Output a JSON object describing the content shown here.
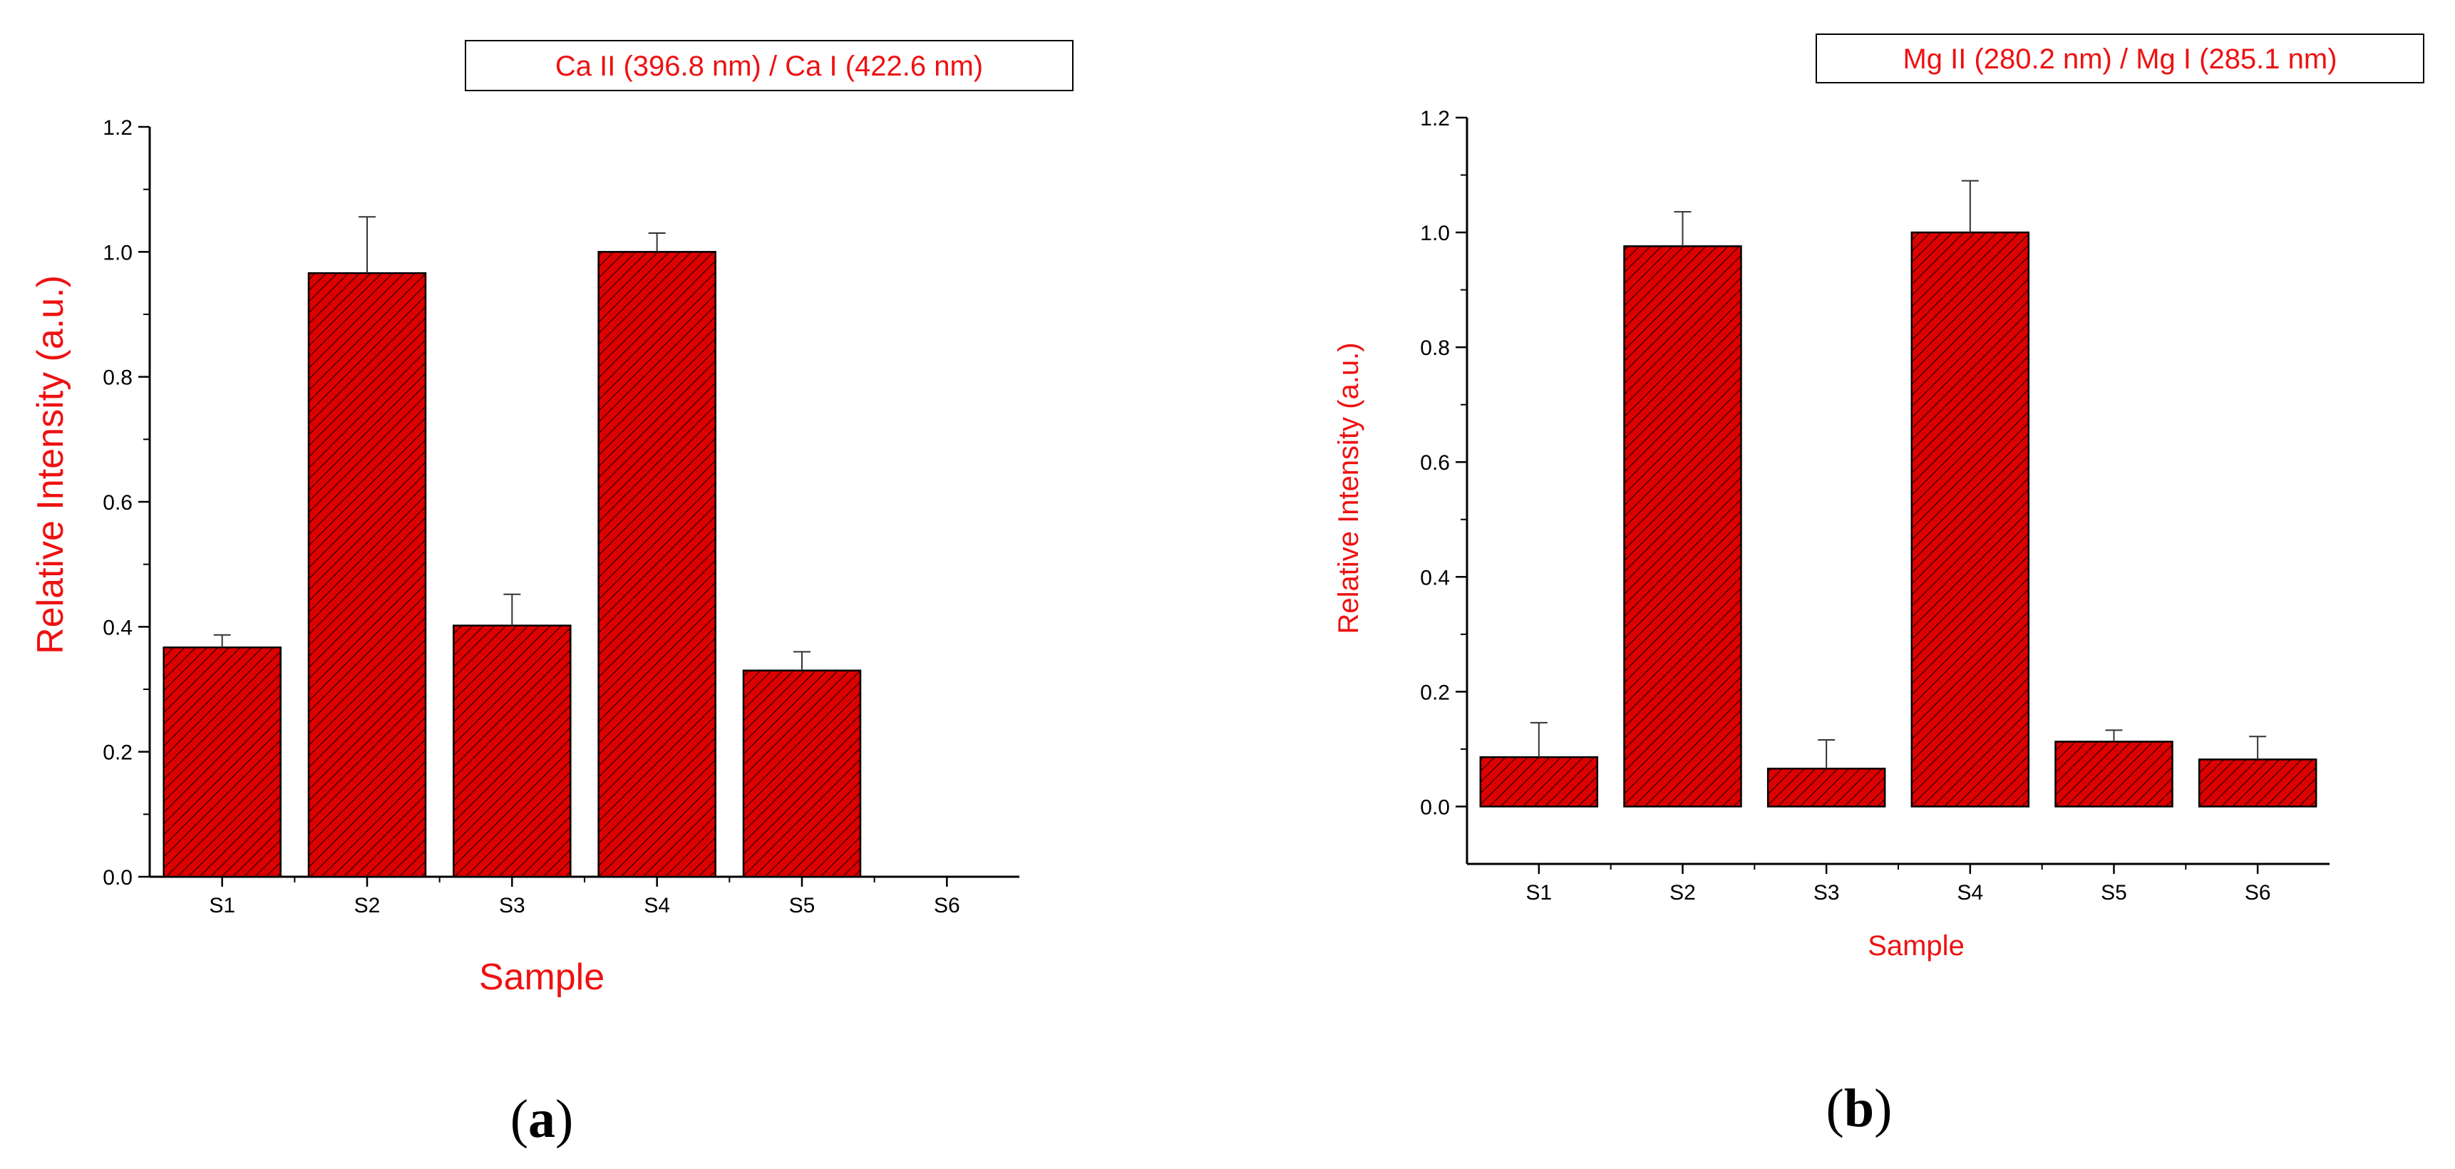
{
  "chart_data": [
    {
      "type": "bar",
      "panel_label": "a",
      "legend": "Ca II (396.8 nm) / Ca I (422.6 nm)",
      "xlabel": "Sample",
      "ylabel": "Relative Intensity (a.u.)",
      "categories": [
        "S1",
        "S2",
        "S3",
        "S4",
        "S5",
        "S6"
      ],
      "values": [
        0.367,
        0.966,
        0.402,
        1.0,
        0.33,
        null
      ],
      "errors": [
        0.02,
        0.09,
        0.05,
        0.03,
        0.03,
        null
      ],
      "ylim": [
        0,
        1.2
      ],
      "yticks": [
        "0.0",
        "0.2",
        "0.4",
        "0.6",
        "0.8",
        "1.0",
        "1.2"
      ],
      "bar_color": "#dd0000",
      "grid": false
    },
    {
      "type": "bar",
      "panel_label": "b",
      "legend": "Mg II (280.2 nm) / Mg I (285.1 nm)",
      "xlabel": "Sample",
      "ylabel": "Relative Intensity (a.u.)",
      "categories": [
        "S1",
        "S2",
        "S3",
        "S4",
        "S5",
        "S6"
      ],
      "values": [
        0.086,
        0.976,
        0.066,
        1.0,
        0.113,
        0.082
      ],
      "errors": [
        0.06,
        0.06,
        0.05,
        0.09,
        0.02,
        0.04
      ],
      "ylim": [
        -0.1,
        1.2
      ],
      "yticks": [
        "0.0",
        "0.2",
        "0.4",
        "0.6",
        "0.8",
        "1.0",
        "1.2"
      ],
      "bar_color": "#dd0000",
      "grid": false
    }
  ]
}
